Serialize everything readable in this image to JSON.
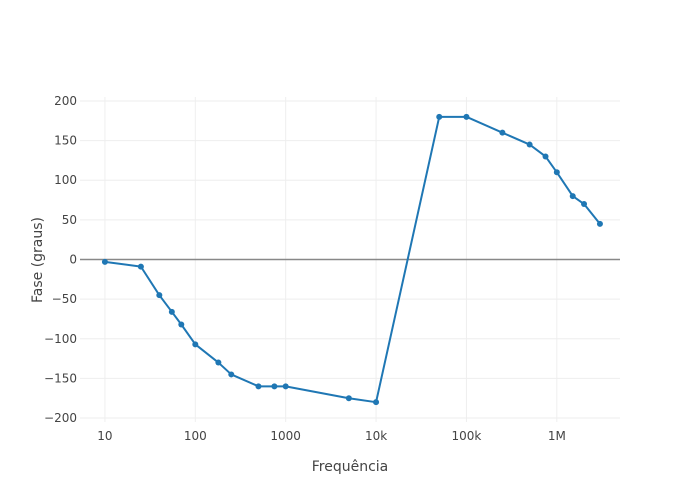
{
  "chart_data": {
    "type": "line",
    "xlabel": "Frequência",
    "ylabel": "Fase (graus)",
    "x_scale": "log",
    "xlim": [
      5.3,
      5000000
    ],
    "ylim": [
      -205,
      205
    ],
    "x_ticks": [
      {
        "value": 10,
        "label": "10"
      },
      {
        "value": 100,
        "label": "100"
      },
      {
        "value": 1000,
        "label": "1000"
      },
      {
        "value": 10000,
        "label": "10k"
      },
      {
        "value": 100000,
        "label": "100k"
      },
      {
        "value": 1000000,
        "label": "1M"
      }
    ],
    "y_ticks": [
      {
        "value": 200,
        "label": "200"
      },
      {
        "value": 150,
        "label": "150"
      },
      {
        "value": 100,
        "label": "100"
      },
      {
        "value": 50,
        "label": "50"
      },
      {
        "value": 0,
        "label": "0"
      },
      {
        "value": -50,
        "label": "−50"
      },
      {
        "value": -100,
        "label": "−100"
      },
      {
        "value": -150,
        "label": "−150"
      },
      {
        "value": -200,
        "label": "−200"
      }
    ],
    "grid": true,
    "color": "#1f77b4",
    "series": [
      {
        "x": [
          10,
          25,
          40,
          55,
          70,
          100,
          180,
          250,
          500,
          750,
          1000,
          5000,
          10000,
          50000,
          100000,
          250000,
          500000,
          750000,
          1000000,
          1500000,
          2000000,
          3000000
        ],
        "y": [
          -3,
          -9,
          -45,
          -66,
          -82,
          -107,
          -130,
          -145,
          -160,
          -160,
          -160,
          -175,
          -180,
          180,
          180,
          160,
          145,
          130,
          110,
          80,
          70,
          45
        ]
      }
    ]
  }
}
